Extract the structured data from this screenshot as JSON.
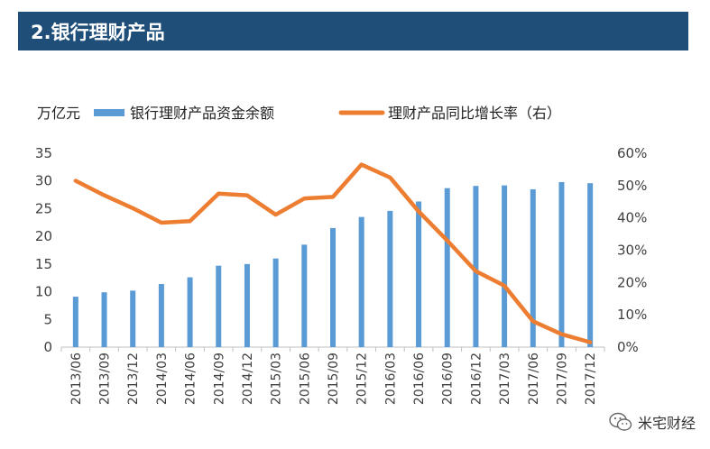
{
  "header": {
    "title": "2.银行理财产品"
  },
  "colors": {
    "header_bg": "#1f4e79",
    "bar": "#5b9bd5",
    "line": "#ed7d31",
    "axis_text": "#404040",
    "gridline": "#d9d9d9"
  },
  "chart_data": {
    "type": "bar",
    "y_unit_label": "万亿元",
    "categories": [
      "2013/06",
      "2013/09",
      "2013/12",
      "2014/03",
      "2014/06",
      "2014/09",
      "2014/12",
      "2015/03",
      "2015/06",
      "2015/09",
      "2015/12",
      "2016/03",
      "2016/06",
      "2016/09",
      "2016/12",
      "2017/03",
      "2017/06",
      "2017/09",
      "2017/12"
    ],
    "series": [
      {
        "name": "银行理财产品资金余额",
        "type": "bar",
        "axis": "left",
        "values": [
          9.1,
          9.9,
          10.2,
          11.4,
          12.6,
          14.7,
          15.0,
          16.0,
          18.5,
          21.5,
          23.5,
          24.6,
          26.3,
          28.7,
          29.1,
          29.2,
          28.5,
          29.8,
          29.6
        ]
      },
      {
        "name": "理财产品同比增长率（右）",
        "type": "line",
        "axis": "right",
        "values": [
          0.515,
          0.47,
          0.43,
          0.385,
          0.39,
          0.475,
          0.47,
          0.41,
          0.46,
          0.465,
          0.565,
          0.525,
          0.42,
          0.33,
          0.235,
          0.19,
          0.08,
          0.04,
          0.015
        ]
      }
    ],
    "left_axis": {
      "ylim": [
        0,
        35
      ],
      "ticks": [
        "0",
        "5",
        "10",
        "15",
        "20",
        "25",
        "30",
        "35"
      ]
    },
    "right_axis": {
      "ylim": [
        0,
        0.6
      ],
      "ticks": [
        "0%",
        "10%",
        "20%",
        "30%",
        "40%",
        "50%",
        "60%"
      ]
    },
    "grid": false,
    "legend_position": "top"
  },
  "watermark": {
    "text": "米宅财经",
    "icon": "wechat-icon"
  }
}
